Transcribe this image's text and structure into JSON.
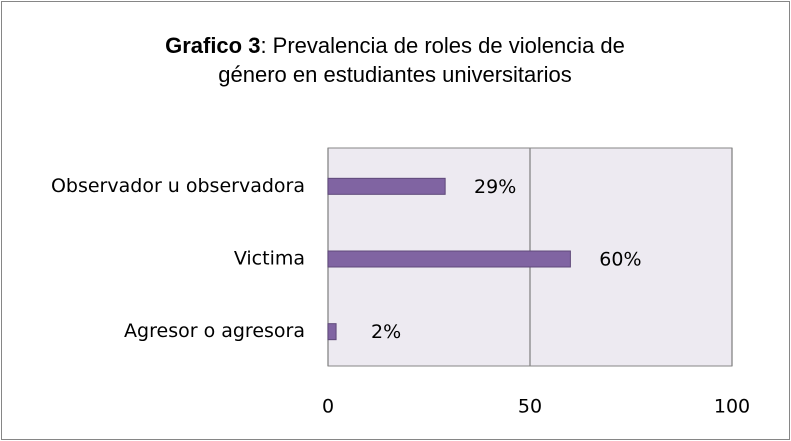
{
  "chart_data": {
    "type": "bar",
    "orientation": "horizontal",
    "title_parts": [
      "Grafico 3",
      ": Prevalencia de roles de violencia de",
      "género en estudiantes universitarios"
    ],
    "categories": [
      "Observador u observadora",
      "Victima",
      "Agresor o agresora"
    ],
    "values": [
      29,
      60,
      2
    ],
    "value_labels": [
      "29%",
      "60%",
      "2%"
    ],
    "color": "#8064a2",
    "xlim": [
      0,
      100
    ],
    "xticks": [
      0,
      50,
      100
    ],
    "grid": true
  }
}
